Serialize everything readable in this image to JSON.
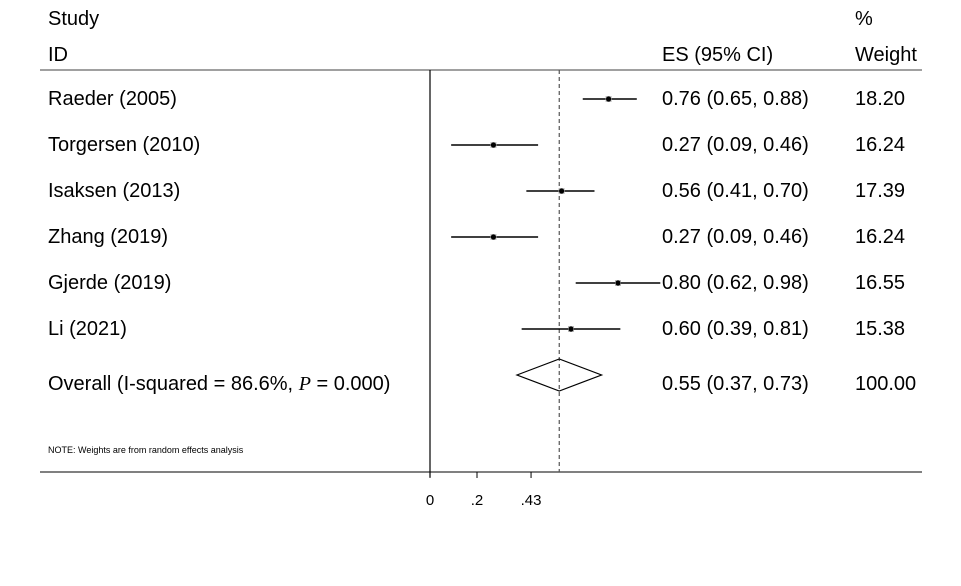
{
  "chart_data": {
    "type": "forest",
    "header": {
      "study_line1": "Study",
      "study_line2": "ID",
      "es_label": "ES (95% CI)",
      "weight_line1": "%",
      "weight_line2": "Weight"
    },
    "studies": [
      {
        "id": "Raeder (2005)",
        "es": 0.76,
        "lo": 0.65,
        "hi": 0.88,
        "es_text": "0.76 (0.65, 0.88)",
        "weight": "18.20"
      },
      {
        "id": "Torgersen (2010)",
        "es": 0.27,
        "lo": 0.09,
        "hi": 0.46,
        "es_text": "0.27 (0.09, 0.46)",
        "weight": "16.24"
      },
      {
        "id": "Isaksen (2013)",
        "es": 0.56,
        "lo": 0.41,
        "hi": 0.7,
        "es_text": "0.56 (0.41, 0.70)",
        "weight": "17.39"
      },
      {
        "id": "Zhang (2019)",
        "es": 0.27,
        "lo": 0.09,
        "hi": 0.46,
        "es_text": "0.27 (0.09, 0.46)",
        "weight": "16.24"
      },
      {
        "id": "Gjerde (2019)",
        "es": 0.8,
        "lo": 0.62,
        "hi": 0.98,
        "es_text": "0.80 (0.62, 0.98)",
        "weight": "16.55"
      },
      {
        "id": "Li (2021)",
        "es": 0.6,
        "lo": 0.39,
        "hi": 0.81,
        "es_text": "0.60 (0.39, 0.81)",
        "weight": "15.38"
      }
    ],
    "overall": {
      "label_prefix": "Overall  (I-squared = 86.6%, ",
      "label_p": "P",
      "label_suffix": " = 0.000)",
      "es": 0.55,
      "lo": 0.37,
      "hi": 0.73,
      "es_text": "0.55 (0.37, 0.73)",
      "weight": "100.00"
    },
    "null_line": 0,
    "xlim": [
      0,
      1.0
    ],
    "xticks": [
      0,
      0.2,
      0.43
    ],
    "xtick_labels": [
      "0",
      ".2",
      ".43"
    ],
    "note": "NOTE: Weights are from random effects analysis"
  }
}
